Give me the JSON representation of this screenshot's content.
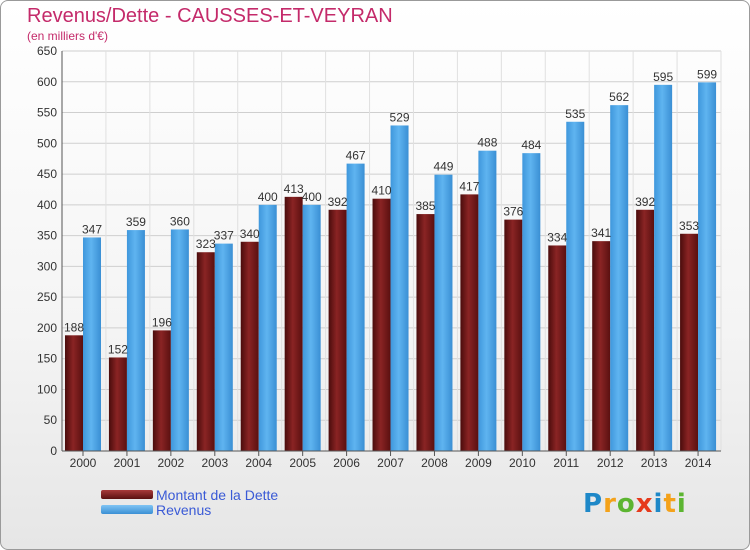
{
  "header": {
    "title": "Revenus/Dette - CAUSSES-ET-VEYRAN",
    "subtitle": "(en milliers d'€)"
  },
  "legend": {
    "items": [
      {
        "label": "Montant de la Dette",
        "color": "#6e1a1a"
      },
      {
        "label": "Revenus",
        "color": "#4aa3e6"
      }
    ]
  },
  "logo": {
    "text": "Proxiti",
    "letters": [
      {
        "ch": "P",
        "color": "#1e88c8"
      },
      {
        "ch": "r",
        "color": "#f4a21a"
      },
      {
        "ch": "o",
        "color": "#5cb531"
      },
      {
        "ch": "x",
        "color": "#e63a1c"
      },
      {
        "ch": "i",
        "color": "#1e88c8"
      },
      {
        "ch": "t",
        "color": "#f4a21a"
      },
      {
        "ch": "i",
        "color": "#5cb531"
      }
    ]
  },
  "chart_data": {
    "type": "bar",
    "title": "Revenus/Dette - CAUSSES-ET-VEYRAN",
    "subtitle": "(en milliers d'€)",
    "categories": [
      "2000",
      "2001",
      "2002",
      "2003",
      "2004",
      "2005",
      "2006",
      "2007",
      "2008",
      "2009",
      "2010",
      "2011",
      "2012",
      "2013",
      "2014"
    ],
    "series": [
      {
        "name": "Montant de la Dette",
        "color": "#6e1a1a",
        "values": [
          188,
          152,
          196,
          323,
          340,
          413,
          392,
          410,
          385,
          417,
          376,
          334,
          341,
          392,
          353
        ]
      },
      {
        "name": "Revenus",
        "color": "#4aa3e6",
        "values": [
          347,
          359,
          360,
          337,
          400,
          400,
          467,
          529,
          449,
          488,
          484,
          535,
          562,
          595,
          599
        ]
      }
    ],
    "ylim": [
      0,
      650
    ],
    "yticks": [
      0,
      50,
      100,
      150,
      200,
      250,
      300,
      350,
      400,
      450,
      500,
      550,
      600,
      650
    ],
    "grid": true,
    "legend_position": "bottom-left"
  }
}
